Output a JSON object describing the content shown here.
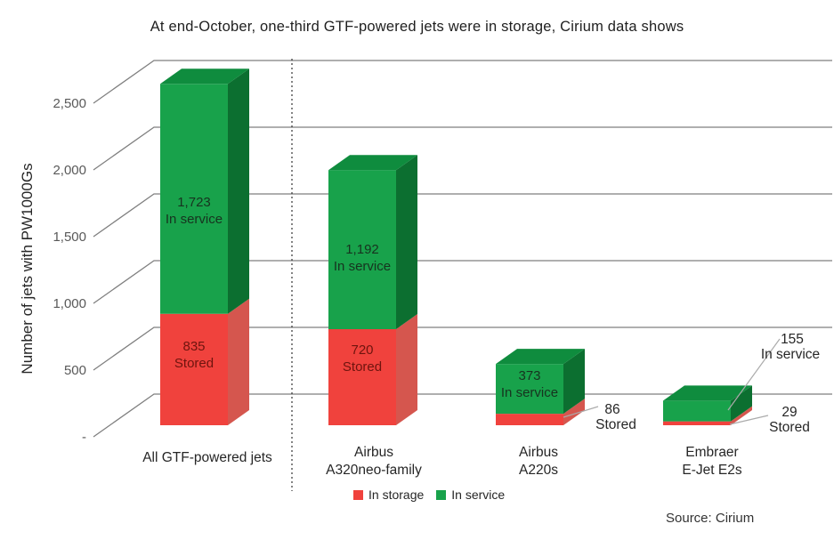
{
  "title": "At end-October, one-third GTF-powered jets were in storage, Cirium data shows",
  "y_axis": {
    "label": "Number of jets with PW1000Gs",
    "tick_labels": [
      "-",
      "500",
      "1,000",
      "1,500",
      "2,000",
      "2,500"
    ]
  },
  "legend": {
    "items": [
      {
        "label": "In storage",
        "color": "#f0423d"
      },
      {
        "label": "In service",
        "color": "#18a24b"
      }
    ]
  },
  "source": "Source: Cirium",
  "colors": {
    "green_front": "#18a24b",
    "green_side": "#0c6f30",
    "green_top": "#0f8c3e",
    "red_front": "#f0423d",
    "red_side": "#d5564e",
    "grid": "#7f7f7f",
    "tick_text": "#595959",
    "text": "#262626",
    "stored_label": "#6e140e",
    "service_label": "#17331f",
    "leader": "#ababab",
    "separator": "#333333"
  },
  "chart_data": {
    "type": "bar",
    "subtype": "3d-stacked-column",
    "title": "At end-October, one-third GTF-powered jets were in storage, Cirium data shows",
    "xlabel": "",
    "ylabel": "Number of jets with PW1000Gs",
    "categories": [
      "All GTF-powered jets",
      "Airbus A320neo-family",
      "Airbus A220s",
      "Embraer E-Jet E2s"
    ],
    "category_lines": [
      [
        "All GTF-powered jets"
      ],
      [
        "Airbus",
        "A320neo-family"
      ],
      [
        "Airbus",
        "A220s"
      ],
      [
        "Embraer",
        "E-Jet E2s"
      ]
    ],
    "series": [
      {
        "name": "In storage",
        "values": [
          835,
          720,
          86,
          29
        ],
        "display_values": [
          "835",
          "720",
          "86",
          "29"
        ],
        "label_word": "Stored"
      },
      {
        "name": "In service",
        "values": [
          1723,
          1192,
          373,
          155
        ],
        "display_values": [
          "1,723",
          "1,192",
          "373",
          "155"
        ],
        "label_word": "In service"
      }
    ],
    "totals": [
      2558,
      1912,
      459,
      184
    ],
    "ylim": [
      0,
      2800
    ],
    "ytick_values": [
      0,
      500,
      1000,
      1500,
      2000,
      2500
    ],
    "ytick_labels": [
      "-",
      "500",
      "1,000",
      "1,500",
      "2,000",
      "2,500"
    ],
    "grid": true,
    "legend_position": "bottom",
    "annotations": [
      "separator line between first column and breakdown columns"
    ]
  }
}
